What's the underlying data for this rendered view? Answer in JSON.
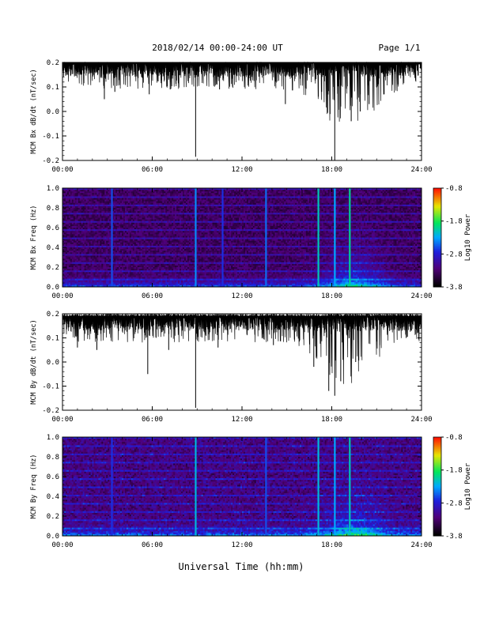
{
  "page": {
    "date_title": "2018/02/14  00:00-24:00 UT",
    "page_label": "Page 1/1",
    "xaxis_label": "Universal Time (hh:mm)"
  },
  "chart_data": [
    {
      "type": "line",
      "ylabel": "MCM Bx dB/dt (nT/sec)",
      "xlim": [
        0,
        24
      ],
      "ylim": [
        -0.2,
        0.2
      ],
      "y_ticks": [
        "0.2",
        "0.1",
        "0.0",
        "-0.1",
        "-0.2"
      ],
      "x_ticks": [
        "00:00",
        "06:00",
        "12:00",
        "18:00",
        "24:00"
      ],
      "baseline": 0.17,
      "spikes": [
        {
          "t": 2.8,
          "y": 0.05
        },
        {
          "t": 3.5,
          "y": 0.08
        },
        {
          "t": 5.8,
          "y": 0.07
        },
        {
          "t": 7.2,
          "y": 0.09
        },
        {
          "t": 8.9,
          "y": -0.185
        },
        {
          "t": 10.5,
          "y": 0.09
        },
        {
          "t": 14.9,
          "y": 0.03
        },
        {
          "t": 17.1,
          "y": 0.06
        },
        {
          "t": 18.2,
          "y": -0.2
        },
        {
          "t": 18.6,
          "y": 0.02
        },
        {
          "t": 19.3,
          "y": -0.04
        },
        {
          "t": 19.9,
          "y": 0.0
        },
        {
          "t": 20.5,
          "y": 0.03
        },
        {
          "t": 21.5,
          "y": 0.07
        }
      ]
    },
    {
      "type": "heatmap",
      "ylabel": "MCM Bx Freq (Hz)",
      "xlim": [
        0,
        24
      ],
      "ylim": [
        0,
        1.0
      ],
      "y_ticks": [
        "1.0",
        "0.8",
        "0.6",
        "0.4",
        "0.2",
        "0.0"
      ],
      "x_ticks": [
        "00:00",
        "06:00",
        "12:00",
        "18:00",
        "24:00"
      ],
      "colorbar": {
        "label": "Log10 Power",
        "ticks": [
          "-0.8",
          "-1.8",
          "-2.8",
          "-3.8"
        ],
        "range": [
          -3.8,
          -0.8
        ]
      },
      "vertical_lines": [
        {
          "t": 3.3,
          "level": -2.6
        },
        {
          "t": 8.9,
          "level": -2.4
        },
        {
          "t": 10.7,
          "level": -2.7
        },
        {
          "t": 13.6,
          "level": -2.5
        },
        {
          "t": 17.1,
          "level": -2.1
        },
        {
          "t": 18.2,
          "level": -2.3
        },
        {
          "t": 19.2,
          "level": -2.0
        }
      ]
    },
    {
      "type": "line",
      "ylabel": "MCM By dB/dt (nT/sec)",
      "xlim": [
        0,
        24
      ],
      "ylim": [
        -0.2,
        0.2
      ],
      "y_ticks": [
        "0.2",
        "0.1",
        "0.0",
        "-0.1",
        "-0.2"
      ],
      "x_ticks": [
        "00:00",
        "06:00",
        "12:00",
        "18:00",
        "24:00"
      ],
      "baseline": 0.16,
      "spikes": [
        {
          "t": 1.0,
          "y": 0.06
        },
        {
          "t": 2.3,
          "y": 0.05
        },
        {
          "t": 5.7,
          "y": -0.05
        },
        {
          "t": 7.1,
          "y": 0.05
        },
        {
          "t": 8.9,
          "y": -0.19
        },
        {
          "t": 10.4,
          "y": 0.06
        },
        {
          "t": 14.1,
          "y": 0.07
        },
        {
          "t": 16.8,
          "y": -0.02
        },
        {
          "t": 17.8,
          "y": -0.12
        },
        {
          "t": 18.2,
          "y": -0.14
        },
        {
          "t": 18.6,
          "y": -0.08
        },
        {
          "t": 19.6,
          "y": 0.0
        },
        {
          "t": 21.2,
          "y": 0.07
        }
      ]
    },
    {
      "type": "heatmap",
      "ylabel": "MCM By Freq (Hz)",
      "xlim": [
        0,
        24
      ],
      "ylim": [
        0,
        1.0
      ],
      "y_ticks": [
        "1.0",
        "0.8",
        "0.6",
        "0.4",
        "0.2",
        "0.0"
      ],
      "x_ticks": [
        "00:00",
        "06:00",
        "12:00",
        "18:00",
        "24:00"
      ],
      "colorbar": {
        "label": "Log10 Power",
        "ticks": [
          "-0.8",
          "-1.8",
          "-2.8",
          "-3.8"
        ],
        "range": [
          -3.8,
          -0.8
        ]
      },
      "vertical_lines": [
        {
          "t": 3.3,
          "level": -2.7
        },
        {
          "t": 8.9,
          "level": -2.2
        },
        {
          "t": 13.6,
          "level": -2.6
        },
        {
          "t": 17.1,
          "level": -2.2
        },
        {
          "t": 18.2,
          "level": -2.3
        },
        {
          "t": 19.2,
          "level": -2.1
        }
      ]
    }
  ]
}
